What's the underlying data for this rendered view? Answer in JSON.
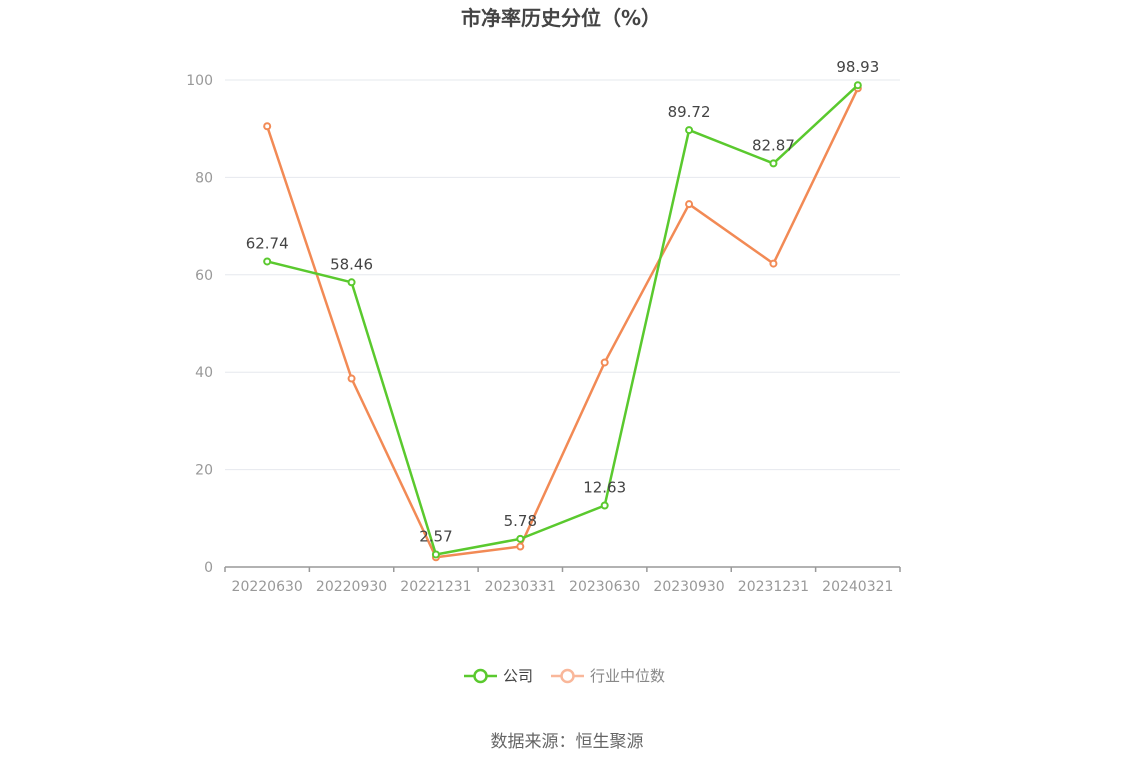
{
  "chart_data": {
    "type": "line",
    "title": "市净率历史分位（%）",
    "categories": [
      "20220630",
      "20220930",
      "20221231",
      "20230331",
      "20230630",
      "20230930",
      "20231231",
      "20240321"
    ],
    "ylim": [
      0,
      100
    ],
    "yticks": [
      0,
      20,
      40,
      60,
      80,
      100
    ],
    "grid": true,
    "legend_position": "bottom-center",
    "series": [
      {
        "name": "公司",
        "color": "#5ac92e",
        "values": [
          62.74,
          58.46,
          2.57,
          5.78,
          12.63,
          89.72,
          82.87,
          98.93
        ],
        "labels": [
          "62.74",
          "58.46",
          "2.57",
          "5.78",
          "12.63",
          "89.72",
          "82.87",
          "98.93"
        ]
      },
      {
        "name": "行业中位数",
        "color": "#f28a55",
        "legend_color": "#f9b79a",
        "values": [
          90.5,
          38.7,
          2.0,
          4.2,
          42.0,
          74.5,
          62.3,
          98.3
        ]
      }
    ]
  },
  "source": "数据来源：恒生聚源"
}
